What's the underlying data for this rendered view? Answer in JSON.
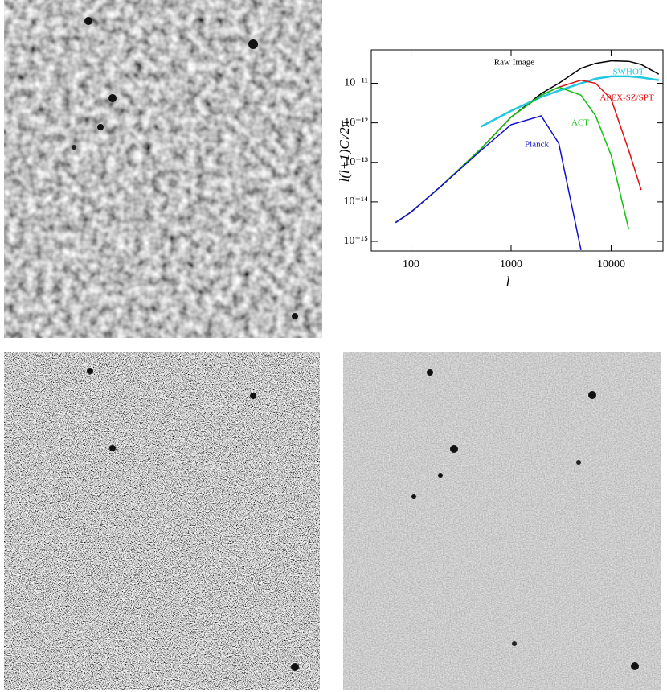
{
  "chart_data": {
    "type": "line",
    "x_label": "l",
    "y_label": "l(l+1)Cₗ/2π",
    "log_x": true,
    "log_y": true,
    "x": [
      70,
      100,
      200,
      500,
      1000,
      2000,
      3000,
      5000,
      7000,
      10000,
      15000,
      20000,
      30000
    ],
    "xlim": [
      40,
      33000
    ],
    "xticks": [
      100,
      1000,
      10000
    ],
    "ylim": [
      5.7e-16,
      7e-11
    ],
    "yticks": [
      {
        "value": 1e-15,
        "label": "10⁻¹⁵"
      },
      {
        "value": 1e-14,
        "label": "10⁻¹⁴"
      },
      {
        "value": 1e-13,
        "label": "10⁻¹³"
      },
      {
        "value": 1e-12,
        "label": "10⁻¹²"
      },
      {
        "value": 1e-11,
        "label": "10⁻¹¹"
      }
    ],
    "series": [
      {
        "name": "Raw Image",
        "color": "#000000",
        "values": [
          3e-15,
          5.5e-15,
          2.5e-14,
          2.2e-13,
          1.4e-12,
          5.5e-12,
          1e-11,
          2.4e-11,
          3.2e-11,
          3.7e-11,
          3.6e-11,
          3e-11,
          1.7e-11
        ]
      },
      {
        "name": "SWHOT",
        "color": "#22c8e0",
        "values": [
          null,
          null,
          null,
          8e-13,
          2e-12,
          4.5e-12,
          6.5e-12,
          1e-11,
          1.3e-11,
          1.5e-11,
          1.5e-11,
          1.4e-11,
          1.2e-11
        ]
      },
      {
        "name": "APEX-SZ/SPT",
        "color": "#e01010",
        "values": [
          3e-15,
          5.5e-15,
          2.5e-14,
          2.2e-13,
          1.4e-12,
          5e-12,
          8e-12,
          1.2e-11,
          1e-11,
          4e-12,
          2e-13,
          2e-14,
          null
        ]
      },
      {
        "name": "ACT",
        "color": "#10c010",
        "values": [
          3e-15,
          5.5e-15,
          2.5e-14,
          2.2e-13,
          1.4e-12,
          5e-12,
          8e-12,
          5e-12,
          1.5e-12,
          1.5e-13,
          2e-15,
          null,
          null
        ]
      },
      {
        "name": "Planck",
        "color": "#1010d0",
        "values": [
          3e-15,
          5.5e-15,
          2.5e-14,
          2e-13,
          9e-13,
          1.5e-12,
          3e-13,
          6e-16,
          null,
          null,
          null,
          null,
          null
        ]
      }
    ]
  }
}
